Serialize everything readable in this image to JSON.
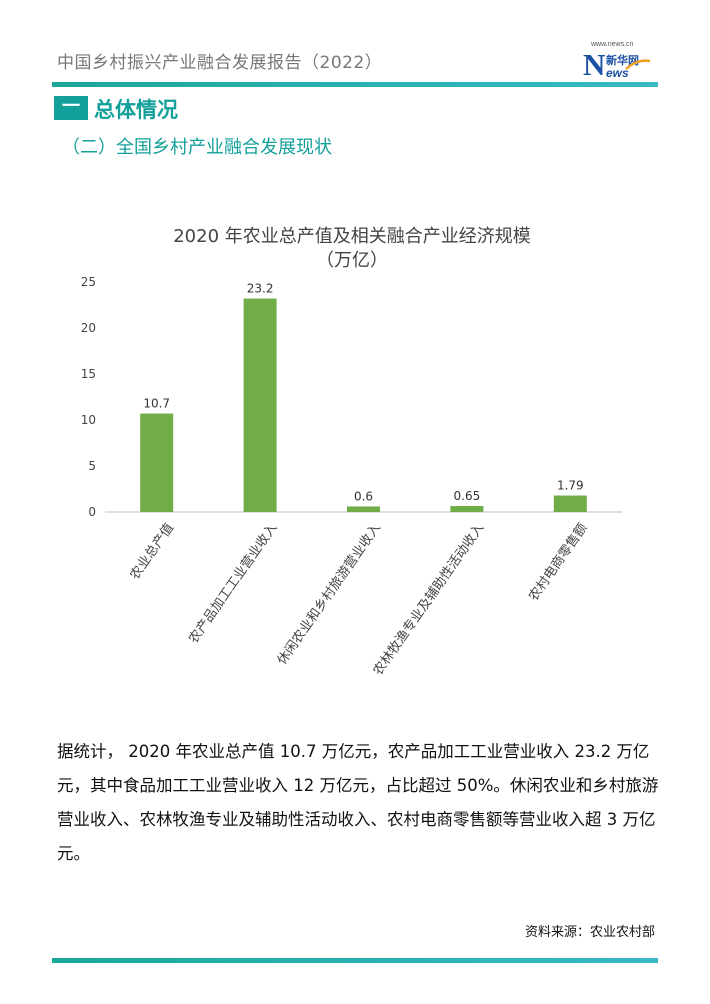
{
  "header": {
    "title": "中国乡村振兴产业融合发展报告（2022）",
    "logo": {
      "url_text": "www.news.cn",
      "letter": "N",
      "chinese": "新华网",
      "suffix": "ews"
    }
  },
  "section": {
    "number": "一",
    "title": "总体情况"
  },
  "subsection": {
    "title": "（二）全国乡村产业融合发展现状"
  },
  "chart_data": {
    "type": "bar",
    "title": "2020 年农业总产值及相关融合产业经济规模",
    "subtitle": "（万亿）",
    "categories": [
      "农业总产值",
      "农产品加工工业营业收入",
      "休闲农业和乡村旅游营业收入",
      "农林牧渔专业及辅助性活动收入",
      "农村电商零售额"
    ],
    "values": [
      10.7,
      23.2,
      0.6,
      0.65,
      1.79
    ],
    "value_labels": [
      "10.7",
      "23.2",
      "0.6",
      "0.65",
      "1.79"
    ],
    "yticks": [
      "0",
      "5",
      "10",
      "15",
      "20",
      "25"
    ],
    "ylim": [
      0,
      25
    ],
    "bar_color": "#70ad47",
    "grid": false,
    "legend": "none"
  },
  "body": {
    "paragraph": "据统计， 2020 年农业总产值 10.7 万亿元，农产品加工工业营业收入 23.2 万亿元，其中食品加工工业营业收入 12 万亿元，占比超过 50%。休闲农业和乡村旅游营业收入、农林牧渔专业及辅助性活动收入、农村电商零售额等营业收入超 3 万亿元。"
  },
  "footer": {
    "source": "资料来源：农业农村部"
  },
  "colors": {
    "accent": "#14a09a",
    "header_text": "#777777"
  }
}
